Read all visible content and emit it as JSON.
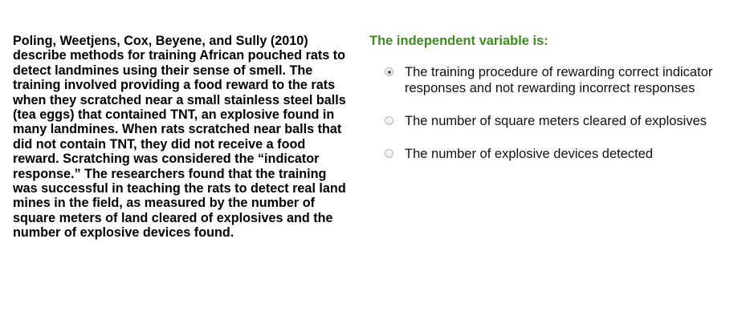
{
  "passage": {
    "text": "Poling, Weetjens, Cox, Beyene, and Sully (2010) describe methods for training African pouched rats to detect landmines using their sense of smell. The training involved providing a food reward to the rats when they scratched near a small stainless steel balls (tea eggs) that contained TNT, an explosive found in many landmines. When rats scratched near balls that did not contain TNT, they did not receive a food reward. Scratching was considered the “indicator response.” The researchers found that the training was successful in teaching the rats to detect real land mines in the field, as measured by the number of square meters of land cleared of explosives and the number of explosive devices found."
  },
  "question": {
    "title": "The independent variable is:",
    "accent_color": "#3d8c1e",
    "options": [
      {
        "label": "The training procedure of rewarding correct indicator responses and not rewarding incorrect responses",
        "selected": true
      },
      {
        "label": "The number of square meters cleared of explosives",
        "selected": false
      },
      {
        "label": "The number of explosive devices detected",
        "selected": false
      }
    ]
  }
}
